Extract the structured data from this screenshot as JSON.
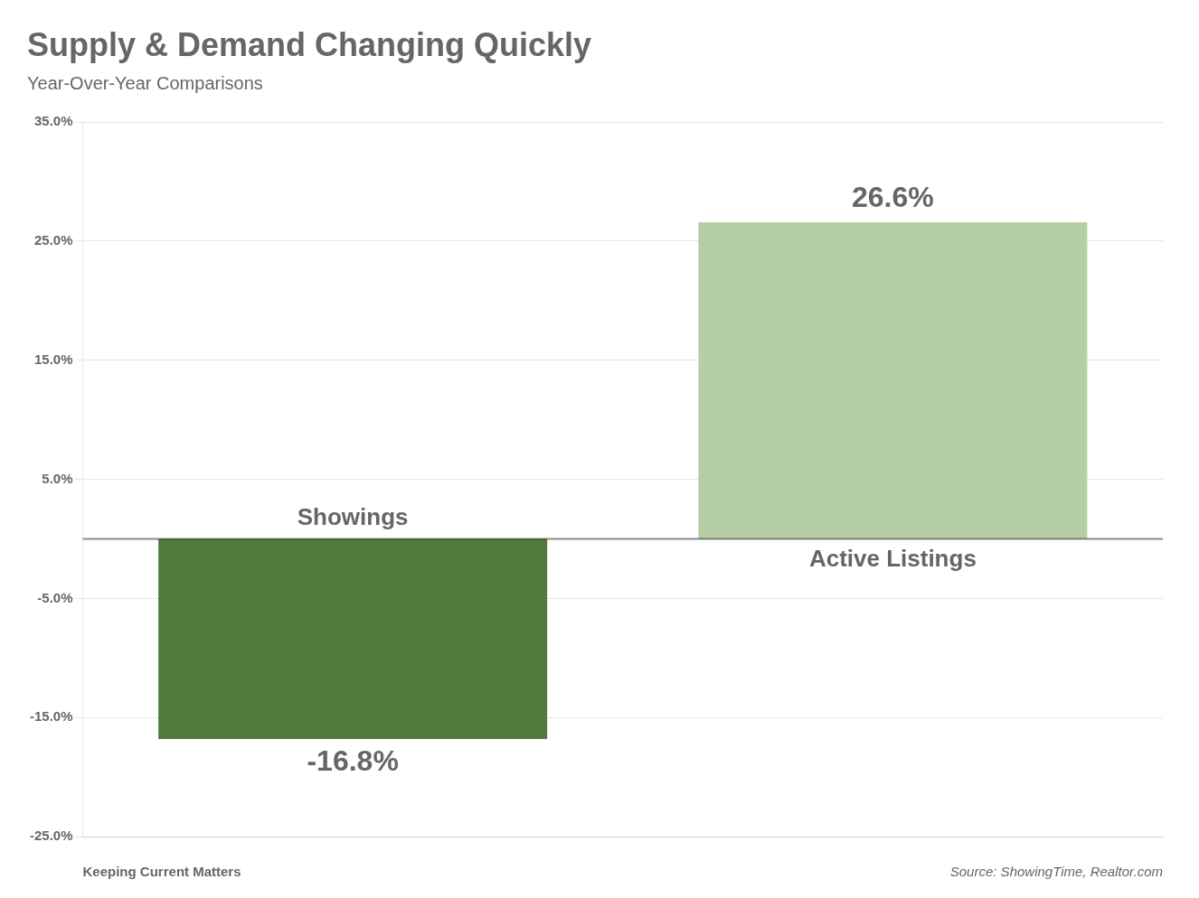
{
  "chart_data": {
    "type": "bar",
    "title": "Supply & Demand Changing Quickly",
    "subtitle": "Year-Over-Year Comparisons",
    "categories": [
      "Showings",
      "Active Listings"
    ],
    "values": [
      -16.8,
      26.6
    ],
    "value_labels": [
      "-16.8%",
      "26.6%"
    ],
    "data_labels": true,
    "colors": [
      "#517a3d",
      "#b5cfa5"
    ],
    "ylim": [
      -25.0,
      35.0
    ],
    "yticks": [
      {
        "value": 35.0,
        "label": "35.0%"
      },
      {
        "value": 25.0,
        "label": "25.0%"
      },
      {
        "value": 15.0,
        "label": "15.0%"
      },
      {
        "value": 5.0,
        "label": "5.0%"
      },
      {
        "value": -5.0,
        "label": "-5.0%"
      },
      {
        "value": -15.0,
        "label": "-15.0%"
      },
      {
        "value": -25.0,
        "label": "-25.0%"
      }
    ],
    "grid": true,
    "tick_labels": "y",
    "annotations": [
      "Keeping Current Matters",
      "Source: ShowingTime, Realtor.com"
    ]
  }
}
